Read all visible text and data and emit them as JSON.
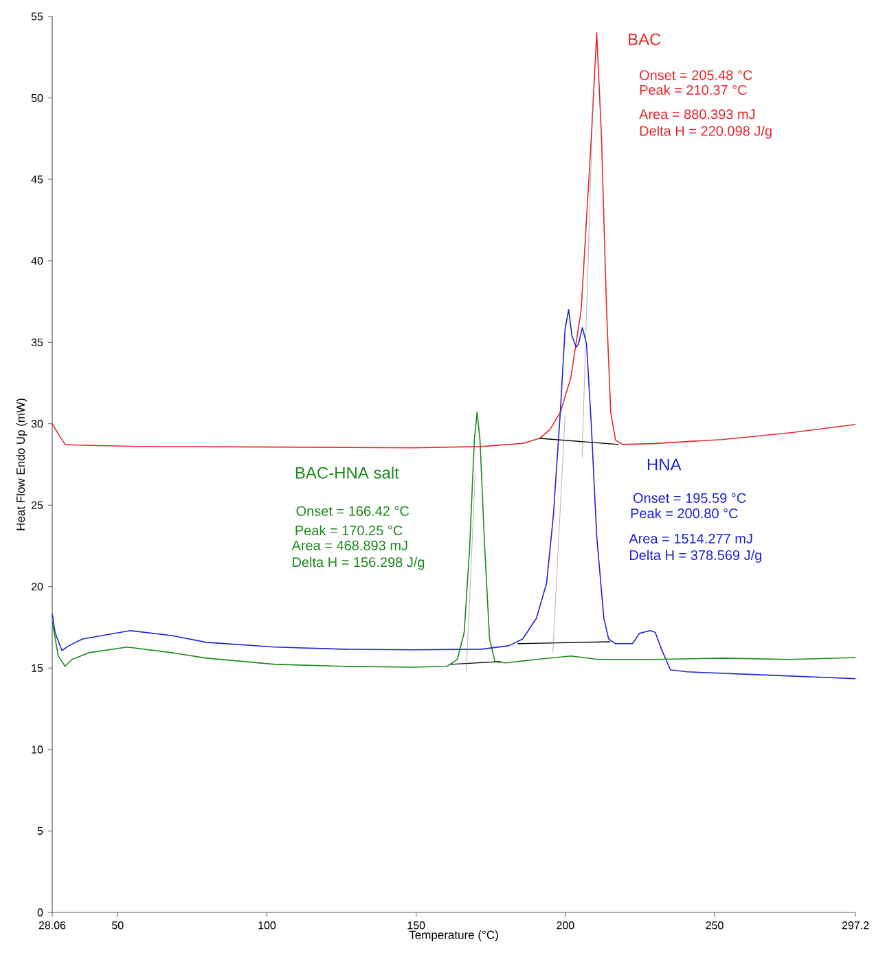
{
  "chart_data": {
    "type": "line",
    "xlabel": "Temperature (°C)",
    "ylabel": "Heat Flow Endo Up (mW)",
    "xlim": [
      28.06,
      297.2
    ],
    "ylim": [
      0,
      55
    ],
    "xticks": [
      28.06,
      50,
      100,
      150,
      200,
      250,
      297.2
    ],
    "yticks": [
      0,
      5,
      10,
      15,
      20,
      25,
      30,
      35,
      40,
      45,
      50,
      55
    ],
    "marker": "none",
    "line_style": "solid",
    "series": [
      {
        "name": "BAC",
        "color": "#e8262b",
        "x": [
          28.06,
          30.1,
          32.4,
          35.9,
          56.6,
          102.7,
          148.8,
          171.8,
          185.7,
          191.4,
          194.9,
          198.3,
          201.8,
          205.3,
          208.7,
          210.5,
          212.1,
          213.8,
          215.2,
          216.8,
          219.1,
          229.4,
          252.5,
          275.5,
          297.2
        ],
        "values": [
          30.0,
          29.37,
          28.73,
          28.69,
          28.61,
          28.57,
          28.52,
          28.6,
          28.8,
          29.1,
          29.66,
          30.7,
          32.8,
          37.0,
          47.6,
          54.0,
          47.6,
          37.0,
          30.7,
          29.0,
          28.73,
          28.78,
          29.03,
          29.45,
          29.96
        ]
      },
      {
        "name": "HNA",
        "color": "#1f22d4",
        "x": [
          28.06,
          29,
          31.3,
          33.6,
          38.2,
          54.3,
          68.1,
          79.7,
          102.7,
          125.8,
          148.8,
          171.8,
          181.0,
          185.7,
          190.3,
          193.7,
          196.0,
          198.3,
          199.9,
          201.1,
          202.2,
          203.6,
          204.3,
          205.7,
          207.1,
          208.7,
          210.5,
          212.9,
          214.5,
          216.8,
          222.5,
          224.8,
          228.3,
          230.1,
          232.2,
          235.2,
          240.9,
          264.0,
          297.2
        ],
        "values": [
          18.35,
          17.2,
          16.08,
          16.37,
          16.79,
          17.3,
          17.0,
          16.58,
          16.29,
          16.16,
          16.12,
          16.16,
          16.37,
          16.79,
          18.06,
          20.2,
          24.4,
          30.7,
          35.8,
          37.0,
          35.4,
          34.7,
          34.85,
          35.9,
          34.9,
          29.9,
          23.1,
          18.06,
          16.79,
          16.5,
          16.5,
          17.13,
          17.3,
          17.2,
          16.16,
          14.89,
          14.77,
          14.6,
          14.35
        ]
      },
      {
        "name": "BAC-HNA salt",
        "color": "#1a8a1a",
        "x": [
          28.06,
          30.1,
          32.4,
          34.7,
          40.5,
          53.2,
          68.1,
          79.7,
          102.7,
          125.8,
          148.8,
          160.3,
          163.8,
          166.1,
          167.9,
          169.5,
          170.4,
          171.4,
          173.0,
          174.6,
          176.4,
          179.9,
          190.3,
          201.8,
          211.0,
          229.4,
          252.5,
          275.5,
          297.2
        ],
        "values": [
          17.85,
          15.74,
          15.11,
          15.53,
          15.95,
          16.29,
          15.95,
          15.61,
          15.23,
          15.11,
          15.06,
          15.11,
          15.53,
          17.2,
          22.3,
          29.0,
          30.7,
          29.0,
          22.3,
          16.8,
          15.4,
          15.32,
          15.53,
          15.74,
          15.53,
          15.53,
          15.61,
          15.53,
          15.65
        ]
      },
      {
        "color": "#000000",
        "x": [
          191.4,
          217.9
        ],
        "values": [
          29.1,
          28.73
        ]
      },
      {
        "color": "#000000",
        "x": [
          184.0,
          215.1
        ],
        "values": [
          16.5,
          16.62
        ]
      },
      {
        "color": "#000000",
        "x": [
          161.5,
          178.3
        ],
        "values": [
          15.23,
          15.4
        ]
      },
      {
        "color": "#808080",
        "x": [
          205.6,
          209.2
        ],
        "values": [
          27.9,
          49.5
        ]
      },
      {
        "color": "#808080",
        "x": [
          195.8,
          199.9
        ],
        "values": [
          15.95,
          30.5
        ]
      },
      {
        "color": "#808080",
        "x": [
          166.8,
          169.8
        ],
        "values": [
          14.7,
          27.0
        ]
      }
    ],
    "annotations": [
      "Onset = 205.48 °C",
      "Peak = 210.37 °C",
      "Area = 880.393 mJ",
      "Delta H = 220.098 J/g",
      "Onset = 195.59 °C",
      "Peak = 200.80 °C",
      "Area = 1514.277 mJ",
      "Delta H = 378.569 J/g",
      "Onset = 166.42 °C",
      "Peak = 170.25 °C",
      "Area = 468.893 mJ",
      "Delta H = 156.298 J/g"
    ]
  }
}
